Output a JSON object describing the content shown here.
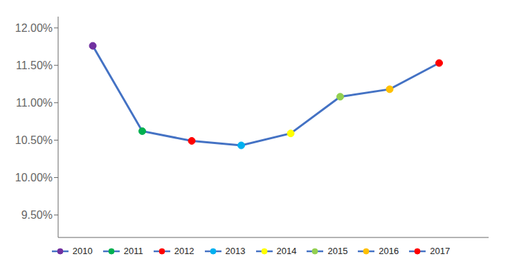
{
  "chart_data": {
    "type": "line",
    "x": [
      2010,
      2011,
      2012,
      2013,
      2014,
      2015,
      2016,
      2017
    ],
    "values": [
      11.76,
      10.62,
      10.49,
      10.43,
      10.59,
      11.08,
      11.18,
      11.53
    ],
    "labels": [
      "2010",
      "2011",
      "2012",
      "2013",
      "2014",
      "2015",
      "2016",
      "2017"
    ],
    "color": "#4472c4",
    "colors": [
      "#7030a0",
      "#00b050",
      "#ff0000",
      "#00b0f0",
      "#ffff00",
      "#92d050",
      "#ffc000",
      "#ff0000"
    ],
    "xlim": [
      2009.3,
      2018.0
    ],
    "xticks": [],
    "ylim": [
      9.2,
      12.15
    ],
    "yticks": [
      {
        "value": 9.5,
        "label": "9.50%"
      },
      {
        "value": 10.0,
        "label": "10.00%"
      },
      {
        "value": 10.5,
        "label": "10.50%"
      },
      {
        "value": 11.0,
        "label": "11.00%"
      },
      {
        "value": 11.5,
        "label": "11.50%"
      },
      {
        "value": 12.0,
        "label": "12.00%"
      }
    ],
    "tick_labels": "y",
    "grid": false,
    "legend": "bottom"
  }
}
